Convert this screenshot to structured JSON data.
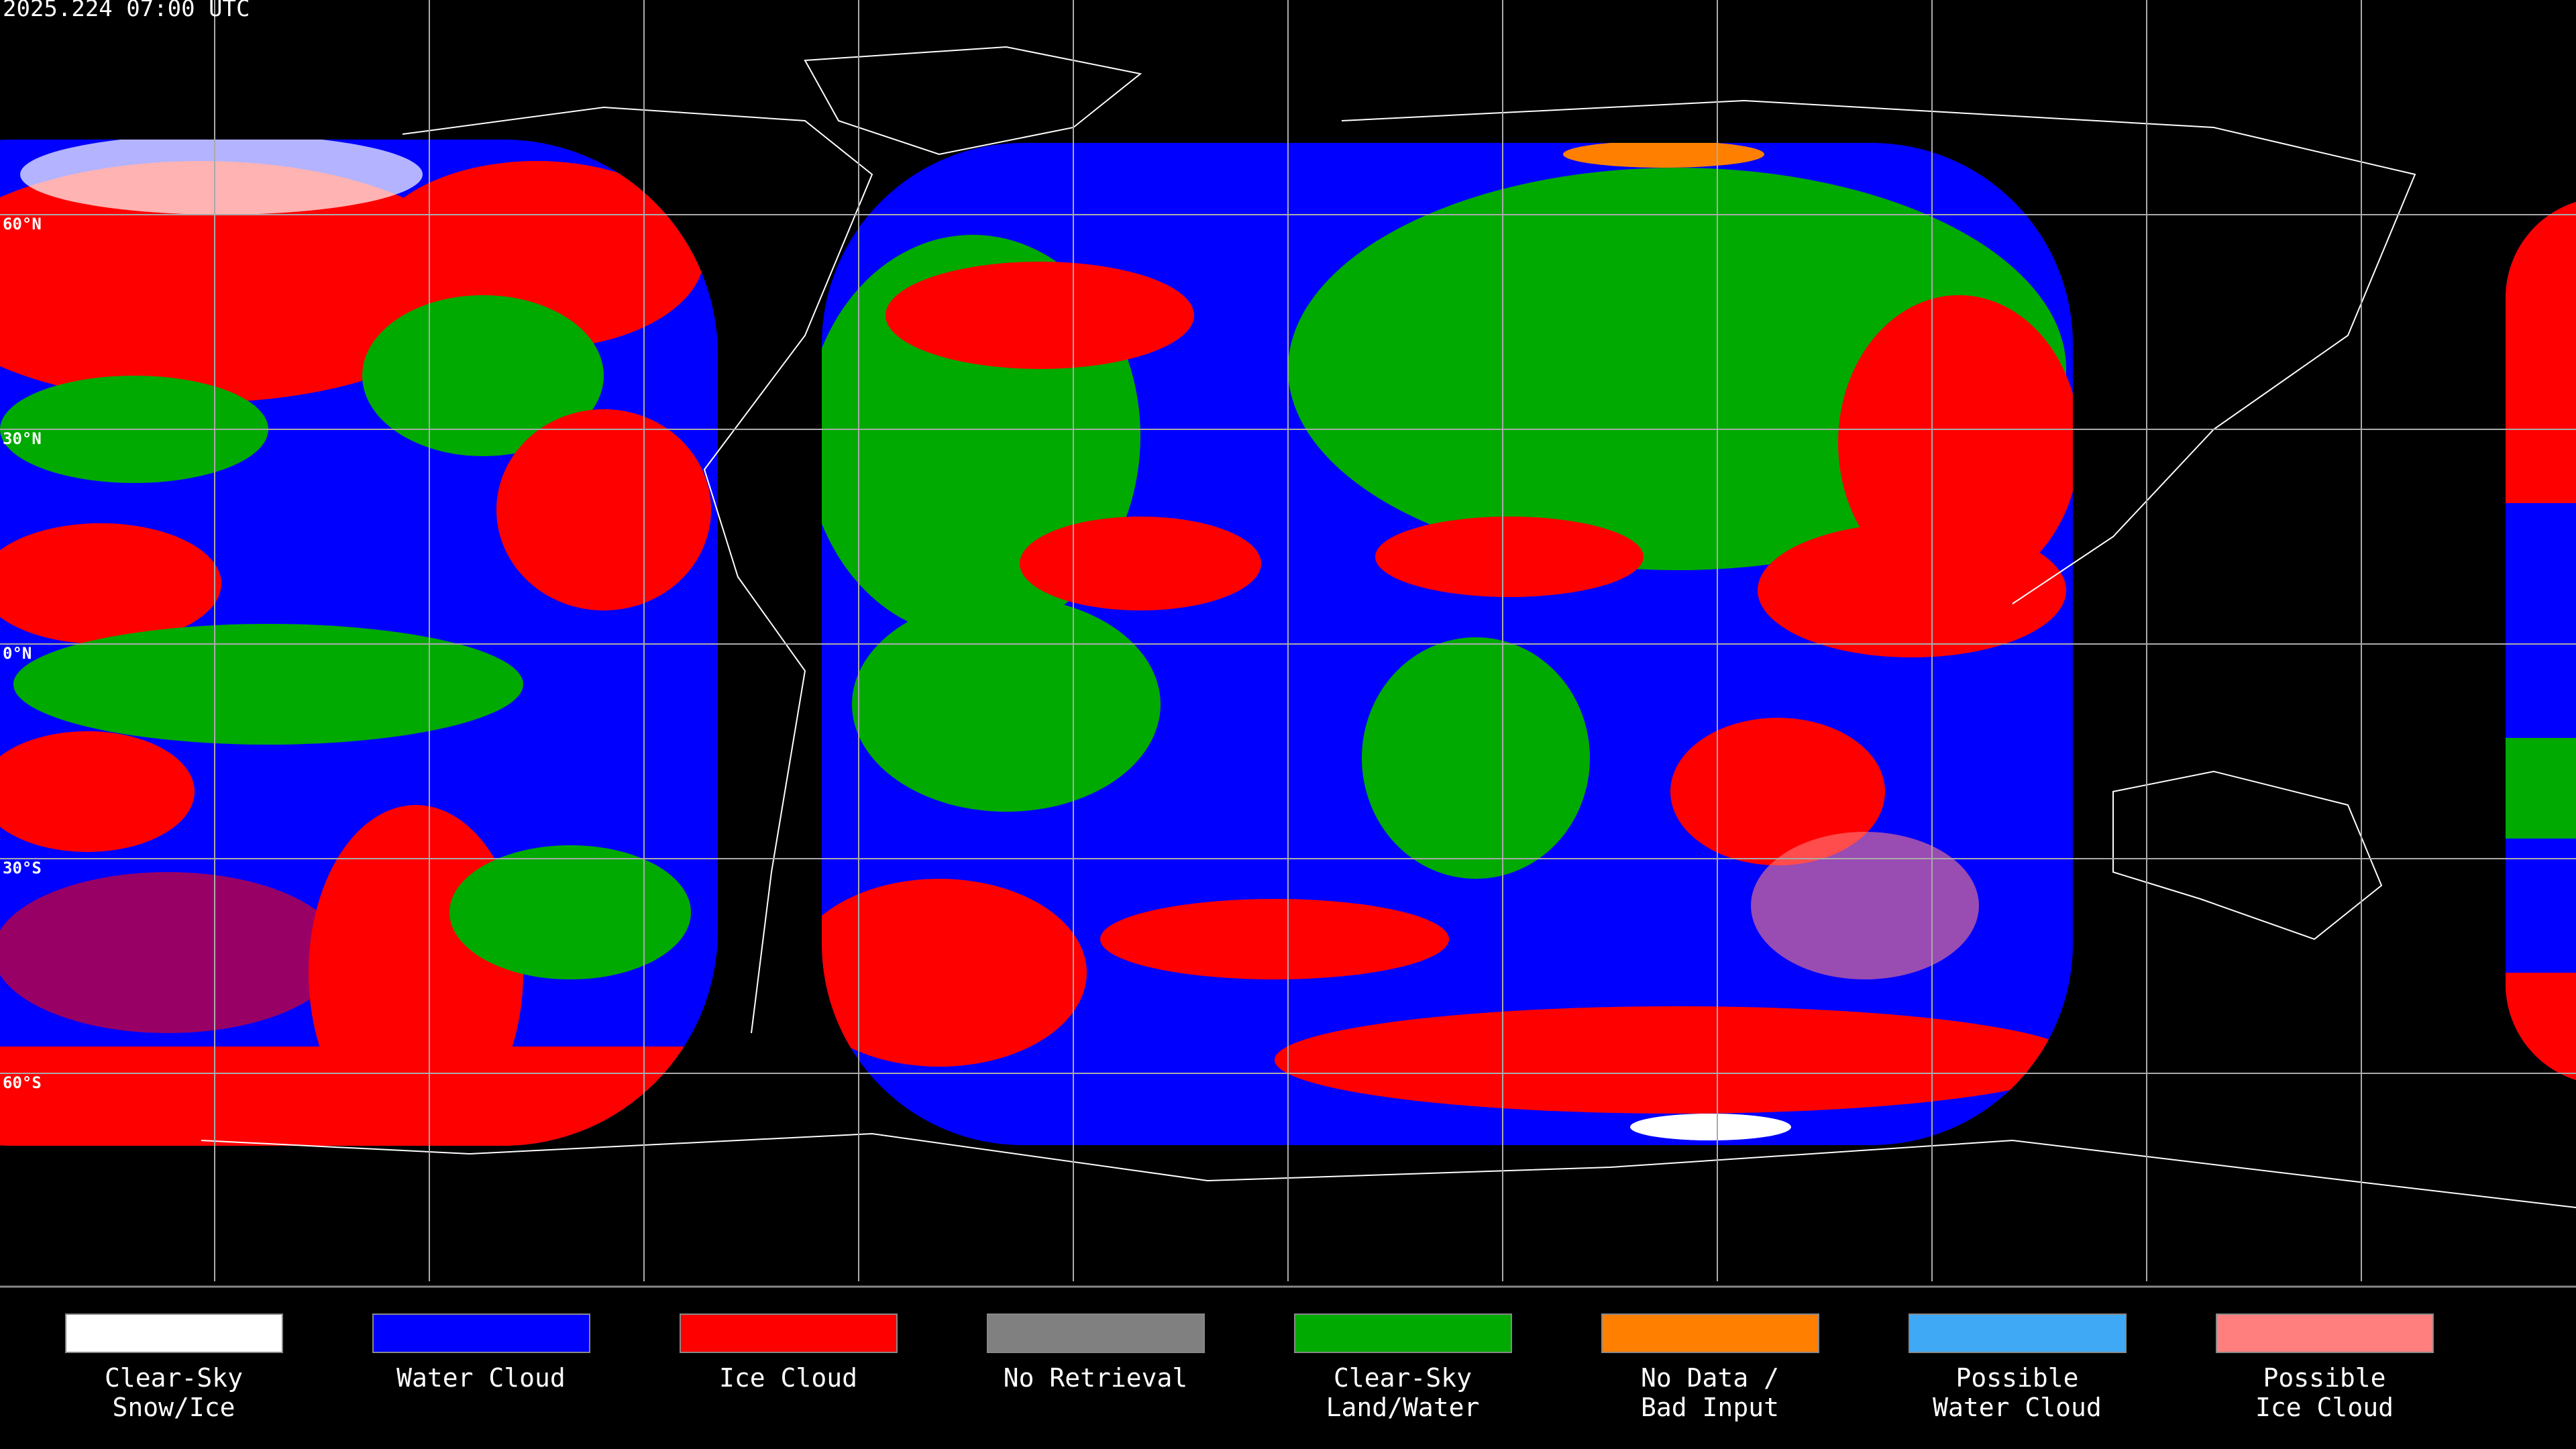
{
  "header": {
    "timestamp": "2025.224 07:00 UTC"
  },
  "map": {
    "lat_labels": [
      "60°N",
      "30°N",
      "0°N",
      "30°S",
      "60°S"
    ]
  },
  "legend": {
    "items": [
      {
        "label": [
          "Clear-Sky",
          "Snow/Ice"
        ],
        "color": "#ffffff"
      },
      {
        "label": [
          "Water Cloud"
        ],
        "color": "#0000ff"
      },
      {
        "label": [
          "Ice Cloud"
        ],
        "color": "#ff0000"
      },
      {
        "label": [
          "No Retrieval"
        ],
        "color": "#808080"
      },
      {
        "label": [
          "Clear-Sky",
          "Land/Water"
        ],
        "color": "#00aa00"
      },
      {
        "label": [
          "No Data /",
          "Bad Input"
        ],
        "color": "#ff8000"
      },
      {
        "label": [
          "Possible",
          "Water Cloud"
        ],
        "color": "#3fa9f5"
      },
      {
        "label": [
          "Possible",
          "Ice Cloud"
        ],
        "color": "#ff7f7f"
      }
    ]
  }
}
